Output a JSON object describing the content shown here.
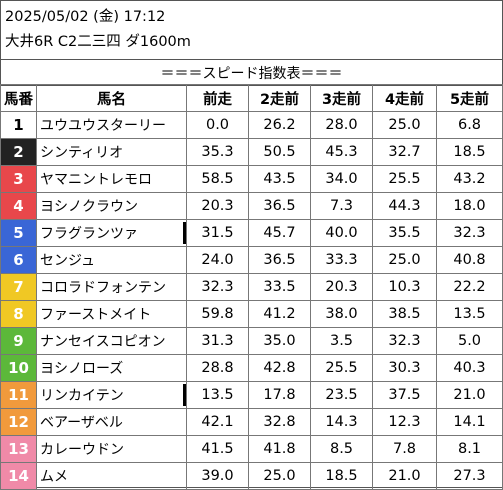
{
  "header": {
    "date_time": "2025/05/02 (金) 17:12",
    "race_info": "大井6R C2二三四 ダ1600m"
  },
  "table_title": "＝＝＝スピード指数表＝＝＝",
  "columns": [
    "馬番",
    "馬名",
    "前走",
    "2走前",
    "3走前",
    "4走前",
    "5走前"
  ],
  "rows": [
    {
      "no": "1",
      "name": "ユウユウスターリー",
      "bg": "#ffffff",
      "fg": "#000000",
      "v": [
        "0.0",
        "26.2",
        "28.0",
        "25.0",
        "6.8"
      ]
    },
    {
      "no": "2",
      "name": "シンティリオ",
      "bg": "#222222",
      "fg": "#ffffff",
      "v": [
        "35.3",
        "50.5",
        "45.3",
        "32.7",
        "18.5"
      ]
    },
    {
      "no": "3",
      "name": "ヤマニントレモロ",
      "bg": "#e8474b",
      "fg": "#ffffff",
      "v": [
        "58.5",
        "43.5",
        "34.0",
        "25.5",
        "43.2"
      ]
    },
    {
      "no": "4",
      "name": "ヨシノクラウン",
      "bg": "#e8474b",
      "fg": "#ffffff",
      "v": [
        "20.3",
        "36.5",
        "7.3",
        "44.3",
        "18.0"
      ]
    },
    {
      "no": "5",
      "name": "フラグランツァ",
      "bg": "#3a66d6",
      "fg": "#ffffff",
      "v": [
        "31.5",
        "45.7",
        "40.0",
        "35.5",
        "32.3"
      ],
      "mark": true
    },
    {
      "no": "6",
      "name": "センジュ",
      "bg": "#3a66d6",
      "fg": "#ffffff",
      "v": [
        "24.0",
        "36.5",
        "33.3",
        "25.0",
        "40.8"
      ]
    },
    {
      "no": "7",
      "name": "コロラドフォンテン",
      "bg": "#f0c824",
      "fg": "#ffffff",
      "v": [
        "32.3",
        "33.5",
        "20.3",
        "10.3",
        "22.2"
      ]
    },
    {
      "no": "8",
      "name": "ファーストメイト",
      "bg": "#f0c824",
      "fg": "#ffffff",
      "v": [
        "59.8",
        "41.2",
        "38.0",
        "38.5",
        "13.5"
      ]
    },
    {
      "no": "9",
      "name": "ナンセイスコピオン",
      "bg": "#5cb83a",
      "fg": "#ffffff",
      "v": [
        "31.3",
        "35.0",
        "3.5",
        "32.3",
        "5.0"
      ]
    },
    {
      "no": "10",
      "name": "ヨシノローズ",
      "bg": "#5cb83a",
      "fg": "#ffffff",
      "v": [
        "28.8",
        "42.8",
        "25.5",
        "30.3",
        "40.3"
      ]
    },
    {
      "no": "11",
      "name": "リンカイテン",
      "bg": "#f19a3c",
      "fg": "#ffffff",
      "v": [
        "13.5",
        "17.8",
        "23.5",
        "37.5",
        "21.0"
      ],
      "mark": true
    },
    {
      "no": "12",
      "name": "ベアーザベル",
      "bg": "#f19a3c",
      "fg": "#ffffff",
      "v": [
        "42.1",
        "32.8",
        "14.3",
        "12.3",
        "14.1"
      ]
    },
    {
      "no": "13",
      "name": "カレーウドン",
      "bg": "#f08aa8",
      "fg": "#ffffff",
      "v": [
        "41.5",
        "41.8",
        "8.5",
        "7.8",
        "8.1"
      ]
    },
    {
      "no": "14",
      "name": "ムメ",
      "bg": "#f08aa8",
      "fg": "#ffffff",
      "v": [
        "39.0",
        "25.0",
        "18.5",
        "21.0",
        "27.3"
      ]
    }
  ]
}
